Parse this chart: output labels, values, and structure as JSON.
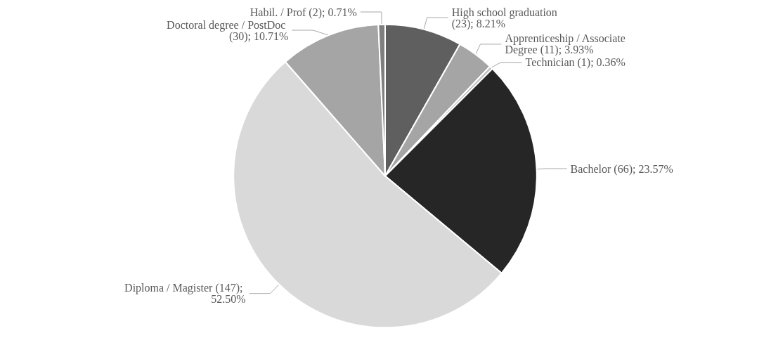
{
  "chart_data": {
    "type": "pie",
    "categories": [
      "High school graduation",
      "Apprenticeship / Associate Degree",
      "Technician",
      "Bachelor",
      "Diploma / Magister",
      "Doctoral degree / PostDoc",
      "Habil. / Prof"
    ],
    "values": [
      23,
      11,
      1,
      66,
      147,
      30,
      2
    ],
    "value_labels": [
      "(23); 8.21%",
      "(11); 3.93%",
      "(1); 0.36%",
      "(66); 23.57%",
      "(147); 52.50%",
      "(30); 10.71%",
      "(2); 0.71%"
    ],
    "colors": [
      "#5f5f5f",
      "#a5a5a5",
      "#bfbfbf",
      "#262626",
      "#d9d9d9",
      "#a5a5a5",
      "#7f7f7f"
    ]
  }
}
